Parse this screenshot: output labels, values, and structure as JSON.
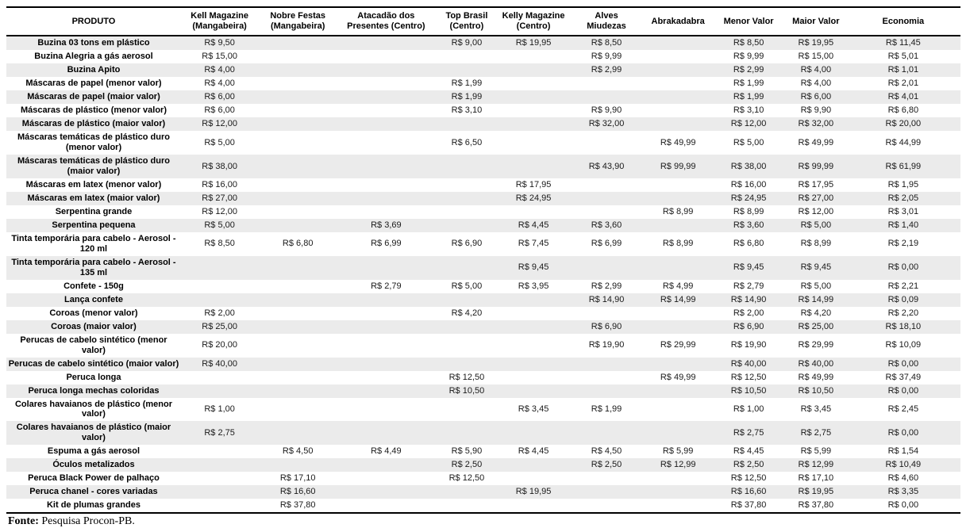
{
  "table": {
    "columns": [
      "PRODUTO",
      "Kell Magazine\n(Mangabeira)",
      "Nobre Festas\n(Mangabeira)",
      "Atacadão dos\nPresentes (Centro)",
      "Top Brasil\n(Centro)",
      "Kelly Magazine\n(Centro)",
      "Alves\nMiudezas",
      "Abrakadabra",
      "Menor Valor",
      "Maior Valor",
      "Economia"
    ],
    "rows": [
      {
        "produto": "Buzina 03 tons em plástico",
        "values": [
          "R$ 9,50",
          "",
          "",
          "R$ 9,00",
          "R$ 19,95",
          "R$ 8,50",
          "",
          "R$ 8,50",
          "R$ 19,95",
          "R$ 11,45"
        ]
      },
      {
        "produto": "Buzina Alegria a gás aerosol",
        "values": [
          "R$ 15,00",
          "",
          "",
          "",
          "",
          "R$ 9,99",
          "",
          "R$ 9,99",
          "R$ 15,00",
          "R$ 5,01"
        ]
      },
      {
        "produto": "Buzina Apito",
        "values": [
          "R$ 4,00",
          "",
          "",
          "",
          "",
          "R$ 2,99",
          "",
          "R$ 2,99",
          "R$ 4,00",
          "R$ 1,01"
        ]
      },
      {
        "produto": "Máscaras de papel (menor valor)",
        "values": [
          "R$ 4,00",
          "",
          "",
          "R$ 1,99",
          "",
          "",
          "",
          "R$ 1,99",
          "R$ 4,00",
          "R$ 2,01"
        ]
      },
      {
        "produto": "Máscaras de papel (maior valor)",
        "values": [
          "R$ 6,00",
          "",
          "",
          "R$ 1,99",
          "",
          "",
          "",
          "R$ 1,99",
          "R$ 6,00",
          "R$ 4,01"
        ]
      },
      {
        "produto": "Máscaras de plástico (menor valor)",
        "values": [
          "R$ 6,00",
          "",
          "",
          "R$ 3,10",
          "",
          "R$ 9,90",
          "",
          "R$ 3,10",
          "R$ 9,90",
          "R$ 6,80"
        ]
      },
      {
        "produto": "Máscaras de plástico (maior valor)",
        "values": [
          "R$ 12,00",
          "",
          "",
          "",
          "",
          "R$ 32,00",
          "",
          "R$ 12,00",
          "R$ 32,00",
          "R$ 20,00"
        ]
      },
      {
        "produto": "Máscaras temáticas de plástico duro (menor valor)",
        "values": [
          "R$ 5,00",
          "",
          "",
          "R$ 6,50",
          "",
          "",
          "R$ 49,99",
          "R$ 5,00",
          "R$ 49,99",
          "R$ 44,99"
        ]
      },
      {
        "produto": "Máscaras temáticas de plástico duro (maior valor)",
        "values": [
          "R$ 38,00",
          "",
          "",
          "",
          "",
          "R$ 43,90",
          "R$ 99,99",
          "R$ 38,00",
          "R$ 99,99",
          "R$ 61,99"
        ]
      },
      {
        "produto": "Máscaras em latex (menor valor)",
        "values": [
          "R$ 16,00",
          "",
          "",
          "",
          "R$ 17,95",
          "",
          "",
          "R$ 16,00",
          "R$ 17,95",
          "R$ 1,95"
        ]
      },
      {
        "produto": "Máscaras em latex (maior valor)",
        "values": [
          "R$ 27,00",
          "",
          "",
          "",
          "R$ 24,95",
          "",
          "",
          "R$ 24,95",
          "R$ 27,00",
          "R$ 2,05"
        ]
      },
      {
        "produto": "Serpentina grande",
        "values": [
          "R$ 12,00",
          "",
          "",
          "",
          "",
          "",
          "R$ 8,99",
          "R$ 8,99",
          "R$ 12,00",
          "R$ 3,01"
        ]
      },
      {
        "produto": "Serpentina pequena",
        "values": [
          "R$ 5,00",
          "",
          "R$ 3,69",
          "",
          "R$ 4,45",
          "R$ 3,60",
          "",
          "R$ 3,60",
          "R$ 5,00",
          "R$ 1,40"
        ]
      },
      {
        "produto": "Tinta temporária para cabelo - Aerosol - 120 ml",
        "values": [
          "R$ 8,50",
          "R$ 6,80",
          "R$ 6,99",
          "R$ 6,90",
          "R$ 7,45",
          "R$ 6,99",
          "R$ 8,99",
          "R$ 6,80",
          "R$ 8,99",
          "R$ 2,19"
        ]
      },
      {
        "produto": "Tinta temporária  para cabelo - Aerosol - 135 ml",
        "values": [
          "",
          "",
          "",
          "",
          "R$ 9,45",
          "",
          "",
          "R$ 9,45",
          "R$ 9,45",
          "R$ 0,00"
        ]
      },
      {
        "produto": "Confete - 150g",
        "values": [
          "",
          "",
          "R$ 2,79",
          "R$ 5,00",
          "R$ 3,95",
          "R$ 2,99",
          "R$ 4,99",
          "R$ 2,79",
          "R$ 5,00",
          "R$ 2,21"
        ]
      },
      {
        "produto": "Lança confete",
        "values": [
          "",
          "",
          "",
          "",
          "",
          "R$ 14,90",
          "R$ 14,99",
          "R$ 14,90",
          "R$ 14,99",
          "R$ 0,09"
        ]
      },
      {
        "produto": "Coroas (menor valor)",
        "values": [
          "R$ 2,00",
          "",
          "",
          "R$ 4,20",
          "",
          "",
          "",
          "R$ 2,00",
          "R$ 4,20",
          "R$ 2,20"
        ]
      },
      {
        "produto": "Coroas (maior valor)",
        "values": [
          "R$ 25,00",
          "",
          "",
          "",
          "",
          "R$ 6,90",
          "",
          "R$ 6,90",
          "R$ 25,00",
          "R$ 18,10"
        ]
      },
      {
        "produto": "Perucas de cabelo sintético (menor valor)",
        "values": [
          "R$ 20,00",
          "",
          "",
          "",
          "",
          "R$ 19,90",
          "R$ 29,99",
          "R$ 19,90",
          "R$ 29,99",
          "R$ 10,09"
        ]
      },
      {
        "produto": "Perucas de cabelo sintético (maior valor)",
        "values": [
          "R$ 40,00",
          "",
          "",
          "",
          "",
          "",
          "",
          "R$ 40,00",
          "R$ 40,00",
          "R$ 0,00"
        ]
      },
      {
        "produto": "Peruca longa",
        "values": [
          "",
          "",
          "",
          "R$ 12,50",
          "",
          "",
          "R$ 49,99",
          "R$ 12,50",
          "R$ 49,99",
          "R$ 37,49"
        ]
      },
      {
        "produto": "Peruca longa mechas coloridas",
        "values": [
          "",
          "",
          "",
          "R$ 10,50",
          "",
          "",
          "",
          "R$ 10,50",
          "R$ 10,50",
          "R$ 0,00"
        ]
      },
      {
        "produto": "Colares havaianos de plástico (menor valor)",
        "values": [
          "R$ 1,00",
          "",
          "",
          "",
          "R$ 3,45",
          "R$ 1,99",
          "",
          "R$ 1,00",
          "R$ 3,45",
          "R$ 2,45"
        ]
      },
      {
        "produto": "Colares havaianos de plástico (maior valor)",
        "values": [
          "R$ 2,75",
          "",
          "",
          "",
          "",
          "",
          "",
          "R$ 2,75",
          "R$ 2,75",
          "R$ 0,00"
        ]
      },
      {
        "produto": "Espuma a gás aerosol",
        "values": [
          "",
          "R$ 4,50",
          "R$ 4,49",
          "R$ 5,90",
          "R$ 4,45",
          "R$ 4,50",
          "R$ 5,99",
          "R$ 4,45",
          "R$ 5,99",
          "R$ 1,54"
        ]
      },
      {
        "produto": "Óculos metalizados",
        "values": [
          "",
          "",
          "",
          "R$ 2,50",
          "",
          "R$ 2,50",
          "R$ 12,99",
          "R$ 2,50",
          "R$ 12,99",
          "R$ 10,49"
        ]
      },
      {
        "produto": "Peruca Black Power de palhaço",
        "values": [
          "",
          "R$ 17,10",
          "",
          "R$ 12,50",
          "",
          "",
          "",
          "R$ 12,50",
          "R$ 17,10",
          "R$ 4,60"
        ]
      },
      {
        "produto": "Peruca chanel - cores variadas",
        "values": [
          "",
          "R$ 16,60",
          "",
          "",
          "R$ 19,95",
          "",
          "",
          "R$ 16,60",
          "R$ 19,95",
          "R$ 3,35"
        ]
      },
      {
        "produto": "Kit de plumas grandes",
        "values": [
          "",
          "R$ 37,80",
          "",
          "",
          "",
          "",
          "",
          "R$ 37,80",
          "R$ 37,80",
          "R$ 0,00"
        ]
      }
    ]
  },
  "footer": {
    "label": "Fonte:",
    "text": " Pesquisa Procon-PB."
  }
}
